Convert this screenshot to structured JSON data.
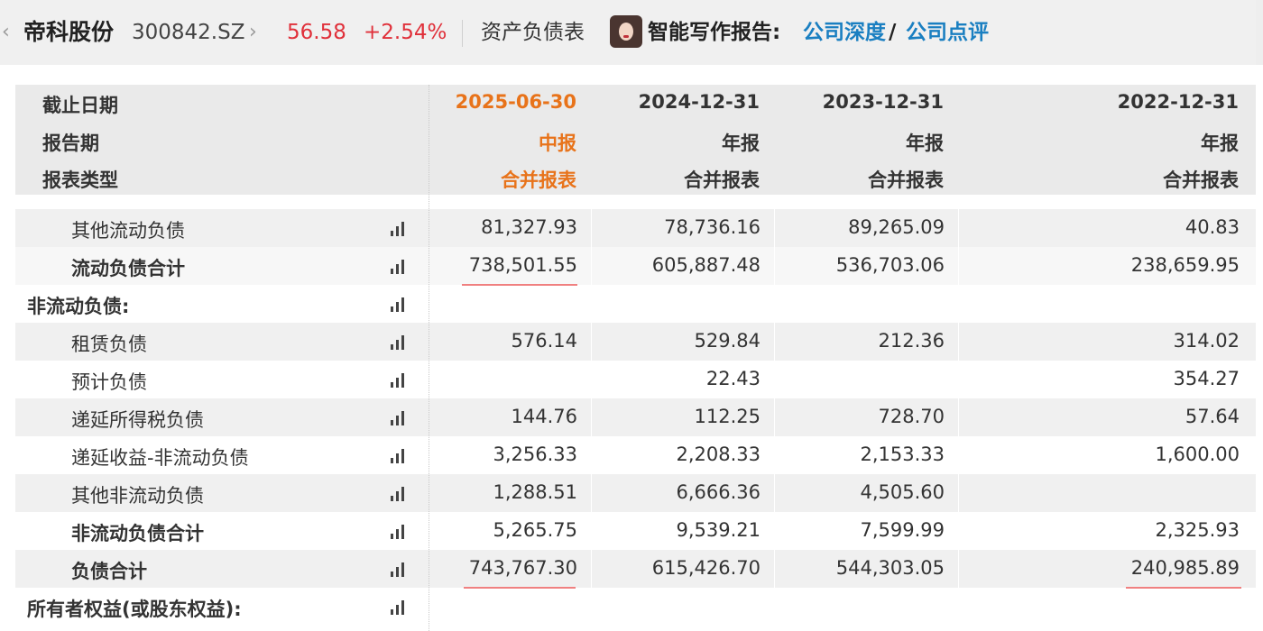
{
  "header": {
    "back_glyph": "‹",
    "stock_name": "帝科股份",
    "stock_code": "300842.SZ",
    "chevron_glyph": "›",
    "price": "56.58",
    "change": "+2.54%",
    "sheet_title": "资产负债表",
    "ai_label": "智能写作报告:",
    "link_deep": "公司深度",
    "slash": "/",
    "link_review": "公司点评",
    "colors": {
      "up": "#e0303a",
      "link": "#1a7fc1",
      "current_period": "#e8731a"
    }
  },
  "table": {
    "header_labels": {
      "date": "截止日期",
      "period": "报告期",
      "type": "报表类型"
    },
    "columns": [
      {
        "date": "2025-06-30",
        "period": "中报",
        "type": "合并报表",
        "current": true
      },
      {
        "date": "2024-12-31",
        "period": "年报",
        "type": "合并报表",
        "current": false
      },
      {
        "date": "2023-12-31",
        "period": "年报",
        "type": "合并报表",
        "current": false
      },
      {
        "date": "2022-12-31",
        "period": "年报",
        "type": "合并报表",
        "current": false
      }
    ],
    "rows": [
      {
        "label": "其他流动负债",
        "values": [
          "81,327.93",
          "78,736.16",
          "89,265.09",
          "40.83"
        ]
      },
      {
        "label": "流动负债合计",
        "values": [
          "738,501.55",
          "605,887.48",
          "536,703.06",
          "238,659.95"
        ]
      },
      {
        "label": "非流动负债:",
        "values": [
          "",
          "",
          "",
          ""
        ]
      },
      {
        "label": "租赁负债",
        "values": [
          "576.14",
          "529.84",
          "212.36",
          "314.02"
        ]
      },
      {
        "label": "预计负债",
        "values": [
          "",
          "22.43",
          "",
          "354.27"
        ]
      },
      {
        "label": "递延所得税负债",
        "values": [
          "144.76",
          "112.25",
          "728.70",
          "57.64"
        ]
      },
      {
        "label": "递延收益-非流动负债",
        "values": [
          "3,256.33",
          "2,208.33",
          "2,153.33",
          "1,600.00"
        ]
      },
      {
        "label": "其他非流动负债",
        "values": [
          "1,288.51",
          "6,666.36",
          "4,505.60",
          ""
        ]
      },
      {
        "label": "非流动负债合计",
        "values": [
          "5,265.75",
          "9,539.21",
          "7,599.99",
          "2,325.93"
        ]
      },
      {
        "label": "负债合计",
        "values": [
          "743,767.30",
          "615,426.70",
          "544,303.05",
          "240,985.89"
        ]
      },
      {
        "label": "所有者权益(或股东权益):",
        "values": [
          "",
          "",
          "",
          ""
        ]
      }
    ],
    "row_icon": "bar-chart-icon"
  }
}
